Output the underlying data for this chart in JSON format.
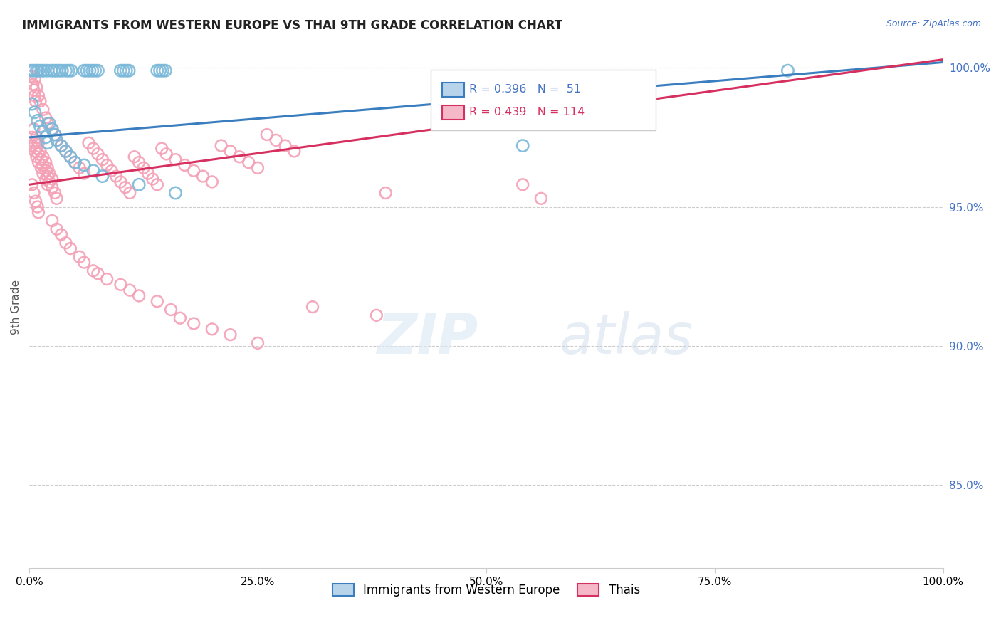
{
  "title": "IMMIGRANTS FROM WESTERN EUROPE VS THAI 9TH GRADE CORRELATION CHART",
  "source": "Source: ZipAtlas.com",
  "ylabel": "9th Grade",
  "legend1_label": "Immigrants from Western Europe",
  "legend2_label": "Thais",
  "r_blue": 0.396,
  "n_blue": 51,
  "r_pink": 0.439,
  "n_pink": 114,
  "blue_color": "#7ab8d9",
  "pink_color": "#f4a0b5",
  "blue_line_color": "#3a7ebf",
  "pink_line_color": "#d63060",
  "blue_line": [
    0.0,
    0.975,
    1.0,
    1.002
  ],
  "pink_line": [
    0.0,
    0.958,
    1.0,
    1.003
  ],
  "blue_points": [
    [
      0.002,
      0.999
    ],
    [
      0.005,
      0.999
    ],
    [
      0.008,
      0.999
    ],
    [
      0.01,
      0.999
    ],
    [
      0.013,
      0.999
    ],
    [
      0.016,
      0.999
    ],
    [
      0.02,
      0.999
    ],
    [
      0.024,
      0.999
    ],
    [
      0.027,
      0.999
    ],
    [
      0.03,
      0.999
    ],
    [
      0.033,
      0.999
    ],
    [
      0.036,
      0.999
    ],
    [
      0.04,
      0.999
    ],
    [
      0.043,
      0.999
    ],
    [
      0.046,
      0.999
    ],
    [
      0.06,
      0.999
    ],
    [
      0.063,
      0.999
    ],
    [
      0.066,
      0.999
    ],
    [
      0.069,
      0.999
    ],
    [
      0.072,
      0.999
    ],
    [
      0.075,
      0.999
    ],
    [
      0.1,
      0.999
    ],
    [
      0.103,
      0.999
    ],
    [
      0.106,
      0.999
    ],
    [
      0.109,
      0.999
    ],
    [
      0.14,
      0.999
    ],
    [
      0.143,
      0.999
    ],
    [
      0.146,
      0.999
    ],
    [
      0.149,
      0.999
    ],
    [
      0.003,
      0.987
    ],
    [
      0.006,
      0.984
    ],
    [
      0.009,
      0.981
    ],
    [
      0.012,
      0.979
    ],
    [
      0.015,
      0.977
    ],
    [
      0.018,
      0.975
    ],
    [
      0.02,
      0.973
    ],
    [
      0.022,
      0.98
    ],
    [
      0.025,
      0.978
    ],
    [
      0.028,
      0.976
    ],
    [
      0.03,
      0.974
    ],
    [
      0.035,
      0.972
    ],
    [
      0.04,
      0.97
    ],
    [
      0.045,
      0.968
    ],
    [
      0.05,
      0.966
    ],
    [
      0.06,
      0.965
    ],
    [
      0.07,
      0.963
    ],
    [
      0.08,
      0.961
    ],
    [
      0.12,
      0.958
    ],
    [
      0.16,
      0.955
    ],
    [
      0.54,
      0.972
    ],
    [
      0.83,
      0.999
    ]
  ],
  "pink_points": [
    [
      0.003,
      0.999
    ],
    [
      0.006,
      0.996
    ],
    [
      0.008,
      0.993
    ],
    [
      0.01,
      0.99
    ],
    [
      0.012,
      0.988
    ],
    [
      0.015,
      0.985
    ],
    [
      0.018,
      0.982
    ],
    [
      0.02,
      0.98
    ],
    [
      0.005,
      0.978
    ],
    [
      0.008,
      0.975
    ],
    [
      0.01,
      0.973
    ],
    [
      0.012,
      0.97
    ],
    [
      0.015,
      0.968
    ],
    [
      0.018,
      0.966
    ],
    [
      0.02,
      0.964
    ],
    [
      0.022,
      0.962
    ],
    [
      0.025,
      0.96
    ],
    [
      0.003,
      0.975
    ],
    [
      0.006,
      0.973
    ],
    [
      0.008,
      0.971
    ],
    [
      0.01,
      0.969
    ],
    [
      0.013,
      0.967
    ],
    [
      0.015,
      0.965
    ],
    [
      0.018,
      0.963
    ],
    [
      0.02,
      0.961
    ],
    [
      0.022,
      0.959
    ],
    [
      0.025,
      0.957
    ],
    [
      0.028,
      0.955
    ],
    [
      0.03,
      0.953
    ],
    [
      0.003,
      0.972
    ],
    [
      0.006,
      0.97
    ],
    [
      0.008,
      0.968
    ],
    [
      0.01,
      0.966
    ],
    [
      0.013,
      0.964
    ],
    [
      0.015,
      0.962
    ],
    [
      0.018,
      0.96
    ],
    [
      0.02,
      0.958
    ],
    [
      0.025,
      0.978
    ],
    [
      0.028,
      0.976
    ],
    [
      0.03,
      0.974
    ],
    [
      0.035,
      0.972
    ],
    [
      0.04,
      0.97
    ],
    [
      0.045,
      0.968
    ],
    [
      0.05,
      0.966
    ],
    [
      0.055,
      0.964
    ],
    [
      0.06,
      0.962
    ],
    [
      0.065,
      0.973
    ],
    [
      0.07,
      0.971
    ],
    [
      0.075,
      0.969
    ],
    [
      0.08,
      0.967
    ],
    [
      0.085,
      0.965
    ],
    [
      0.09,
      0.963
    ],
    [
      0.095,
      0.961
    ],
    [
      0.1,
      0.959
    ],
    [
      0.105,
      0.957
    ],
    [
      0.11,
      0.955
    ],
    [
      0.115,
      0.968
    ],
    [
      0.12,
      0.966
    ],
    [
      0.125,
      0.964
    ],
    [
      0.13,
      0.962
    ],
    [
      0.135,
      0.96
    ],
    [
      0.14,
      0.958
    ],
    [
      0.145,
      0.971
    ],
    [
      0.15,
      0.969
    ],
    [
      0.16,
      0.967
    ],
    [
      0.17,
      0.965
    ],
    [
      0.18,
      0.963
    ],
    [
      0.19,
      0.961
    ],
    [
      0.2,
      0.959
    ],
    [
      0.21,
      0.972
    ],
    [
      0.22,
      0.97
    ],
    [
      0.23,
      0.968
    ],
    [
      0.24,
      0.966
    ],
    [
      0.25,
      0.964
    ],
    [
      0.26,
      0.976
    ],
    [
      0.27,
      0.974
    ],
    [
      0.28,
      0.972
    ],
    [
      0.29,
      0.97
    ],
    [
      0.002,
      0.997
    ],
    [
      0.004,
      0.994
    ],
    [
      0.005,
      0.992
    ],
    [
      0.006,
      0.99
    ],
    [
      0.007,
      0.988
    ],
    [
      0.003,
      0.958
    ],
    [
      0.005,
      0.955
    ],
    [
      0.007,
      0.952
    ],
    [
      0.009,
      0.95
    ],
    [
      0.01,
      0.948
    ],
    [
      0.025,
      0.945
    ],
    [
      0.03,
      0.942
    ],
    [
      0.035,
      0.94
    ],
    [
      0.04,
      0.937
    ],
    [
      0.045,
      0.935
    ],
    [
      0.055,
      0.932
    ],
    [
      0.06,
      0.93
    ],
    [
      0.07,
      0.927
    ],
    [
      0.075,
      0.926
    ],
    [
      0.085,
      0.924
    ],
    [
      0.1,
      0.922
    ],
    [
      0.11,
      0.92
    ],
    [
      0.12,
      0.918
    ],
    [
      0.14,
      0.916
    ],
    [
      0.155,
      0.913
    ],
    [
      0.165,
      0.91
    ],
    [
      0.18,
      0.908
    ],
    [
      0.2,
      0.906
    ],
    [
      0.22,
      0.904
    ],
    [
      0.25,
      0.901
    ],
    [
      0.31,
      0.914
    ],
    [
      0.38,
      0.911
    ],
    [
      0.39,
      0.955
    ],
    [
      0.54,
      0.958
    ],
    [
      0.56,
      0.953
    ]
  ],
  "xlim": [
    0.0,
    1.0
  ],
  "ylim": [
    0.82,
    1.008
  ],
  "xtick_positions": [
    0.0,
    0.25,
    0.5,
    0.75,
    1.0
  ],
  "xtick_labels": [
    "0.0%",
    "25.0%",
    "50.0%",
    "75.0%",
    "100.0%"
  ],
  "ytick_positions": [
    0.85,
    0.9,
    0.95,
    1.0
  ],
  "ytick_labels": [
    "85.0%",
    "90.0%",
    "95.0%",
    "100.0%"
  ]
}
